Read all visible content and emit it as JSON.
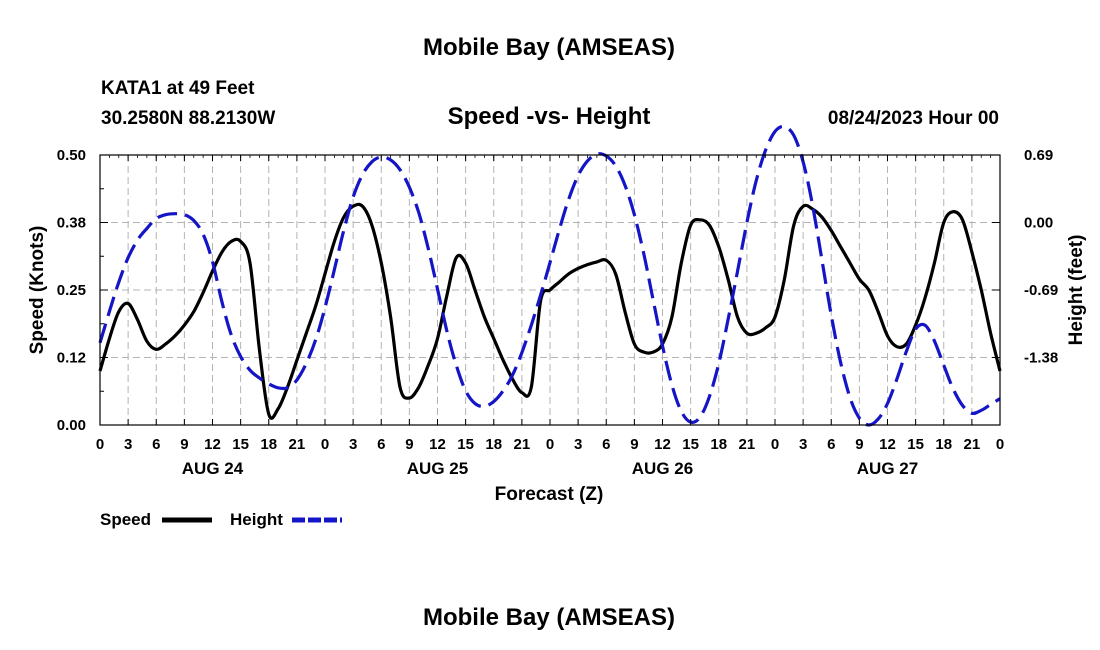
{
  "chart_data": {
    "type": "line",
    "title": "Mobile Bay (AMSEAS)",
    "subtitle": "Speed -vs- Height",
    "station": "KATA1 at 49 Feet",
    "coords": "30.2580N  88.2130W",
    "datetime": "08/24/2023 Hour 00",
    "footer_title": "Mobile Bay (AMSEAS)",
    "xlabel": "Forecast (Z)",
    "ylabel_left": "Speed (Knots)",
    "ylabel_right": "Height (feet)",
    "x_ticks": [
      "0",
      "3",
      "6",
      "9",
      "12",
      "15",
      "18",
      "21",
      "0",
      "3",
      "6",
      "9",
      "12",
      "15",
      "18",
      "21",
      "0",
      "3",
      "6",
      "9",
      "12",
      "15",
      "18",
      "21",
      "0",
      "3",
      "6",
      "9",
      "12",
      "15",
      "18",
      "21",
      "0"
    ],
    "day_labels": [
      {
        "label": "AUG 24",
        "hour": 12
      },
      {
        "label": "AUG 25",
        "hour": 36
      },
      {
        "label": "AUG 26",
        "hour": 60
      },
      {
        "label": "AUG 27",
        "hour": 84
      }
    ],
    "xlim": [
      0,
      96
    ],
    "ylim_left": [
      0,
      0.5
    ],
    "yticks_left": [
      "0.00",
      "0.12",
      "0.25",
      "0.38",
      "0.50"
    ],
    "ylim_right": [
      -2.07,
      0.69
    ],
    "yticks_right": [
      "-1.38",
      "-0.69",
      "0.00",
      "0.69"
    ],
    "legend": [
      {
        "name": "Speed",
        "color": "#000000",
        "style": "solid"
      },
      {
        "name": "Height",
        "color": "#1515c8",
        "style": "dashed"
      }
    ],
    "series": [
      {
        "name": "Speed",
        "color": "#000000",
        "style": "solid",
        "x": [
          0,
          1,
          2,
          3,
          4,
          5,
          6,
          7,
          8,
          9,
          10,
          11,
          12,
          13,
          14,
          15,
          16,
          17,
          18,
          19,
          20,
          21,
          22,
          23,
          24,
          25,
          26,
          27,
          28,
          29,
          30,
          31,
          32,
          33,
          34,
          35,
          36,
          37,
          38,
          39,
          40,
          41,
          42,
          43,
          44,
          45,
          46,
          47,
          48,
          49,
          50,
          51,
          52,
          53,
          54,
          55,
          56,
          57,
          58,
          59,
          60,
          61,
          62,
          63,
          64,
          65,
          66,
          67,
          68,
          69,
          70,
          71,
          72,
          73,
          74,
          75,
          76,
          77,
          78,
          79,
          80,
          81,
          82,
          83,
          84,
          85,
          86,
          87,
          88,
          89,
          90,
          91,
          92,
          93,
          94,
          95,
          96
        ],
        "y": [
          0.1,
          0.16,
          0.21,
          0.225,
          0.195,
          0.155,
          0.14,
          0.15,
          0.165,
          0.185,
          0.21,
          0.245,
          0.285,
          0.32,
          0.34,
          0.34,
          0.3,
          0.14,
          0.02,
          0.03,
          0.07,
          0.12,
          0.17,
          0.22,
          0.28,
          0.34,
          0.385,
          0.405,
          0.405,
          0.37,
          0.3,
          0.2,
          0.07,
          0.05,
          0.07,
          0.11,
          0.16,
          0.24,
          0.31,
          0.3,
          0.25,
          0.2,
          0.16,
          0.12,
          0.085,
          0.06,
          0.07,
          0.23,
          0.25,
          0.265,
          0.28,
          0.29,
          0.297,
          0.302,
          0.305,
          0.28,
          0.21,
          0.15,
          0.135,
          0.135,
          0.15,
          0.2,
          0.3,
          0.37,
          0.38,
          0.37,
          0.33,
          0.27,
          0.2,
          0.17,
          0.17,
          0.18,
          0.2,
          0.27,
          0.37,
          0.405,
          0.4,
          0.385,
          0.36,
          0.33,
          0.3,
          0.27,
          0.25,
          0.21,
          0.165,
          0.145,
          0.15,
          0.185,
          0.235,
          0.3,
          0.375,
          0.395,
          0.38,
          0.32,
          0.25,
          0.17,
          0.1
        ]
      },
      {
        "name": "Height",
        "color": "#1515c8",
        "style": "dashed",
        "x": [
          0,
          1,
          2,
          3,
          4,
          5,
          6,
          7,
          8,
          9,
          10,
          11,
          12,
          13,
          14,
          15,
          16,
          17,
          18,
          19,
          20,
          21,
          22,
          23,
          24,
          25,
          26,
          27,
          28,
          29,
          30,
          31,
          32,
          33,
          34,
          35,
          36,
          37,
          38,
          39,
          40,
          41,
          42,
          43,
          44,
          45,
          46,
          47,
          48,
          49,
          50,
          51,
          52,
          53,
          54,
          55,
          56,
          57,
          58,
          59,
          60,
          61,
          62,
          63,
          64,
          65,
          66,
          67,
          68,
          69,
          70,
          71,
          72,
          73,
          74,
          75,
          76,
          77,
          78,
          79,
          80,
          81,
          82,
          83,
          84,
          85,
          86,
          87,
          88,
          89,
          90,
          91,
          92,
          93,
          94,
          95,
          96
        ],
        "y": [
          -1.23,
          -0.91,
          -0.61,
          -0.36,
          -0.18,
          -0.06,
          0.04,
          0.08,
          0.09,
          0.08,
          0.02,
          -0.12,
          -0.4,
          -0.81,
          -1.15,
          -1.37,
          -1.51,
          -1.59,
          -1.65,
          -1.69,
          -1.69,
          -1.61,
          -1.44,
          -1.2,
          -0.87,
          -0.48,
          -0.08,
          0.26,
          0.49,
          0.62,
          0.67,
          0.64,
          0.54,
          0.36,
          0.1,
          -0.26,
          -0.68,
          -1.11,
          -1.46,
          -1.72,
          -1.85,
          -1.88,
          -1.83,
          -1.72,
          -1.56,
          -1.33,
          -1.05,
          -0.74,
          -0.41,
          -0.07,
          0.24,
          0.48,
          0.63,
          0.7,
          0.68,
          0.58,
          0.38,
          0.08,
          -0.32,
          -0.79,
          -1.26,
          -1.66,
          -1.93,
          -2.04,
          -1.99,
          -1.78,
          -1.44,
          -0.99,
          -0.5,
          0.0,
          0.43,
          0.74,
          0.93,
          0.98,
          0.89,
          0.62,
          0.18,
          -0.38,
          -0.95,
          -1.43,
          -1.79,
          -2.0,
          -2.07,
          -2.01,
          -1.85,
          -1.6,
          -1.32,
          -1.09,
          -1.05,
          -1.21,
          -1.46,
          -1.7,
          -1.87,
          -1.95,
          -1.92,
          -1.86,
          -1.8
        ]
      }
    ]
  }
}
